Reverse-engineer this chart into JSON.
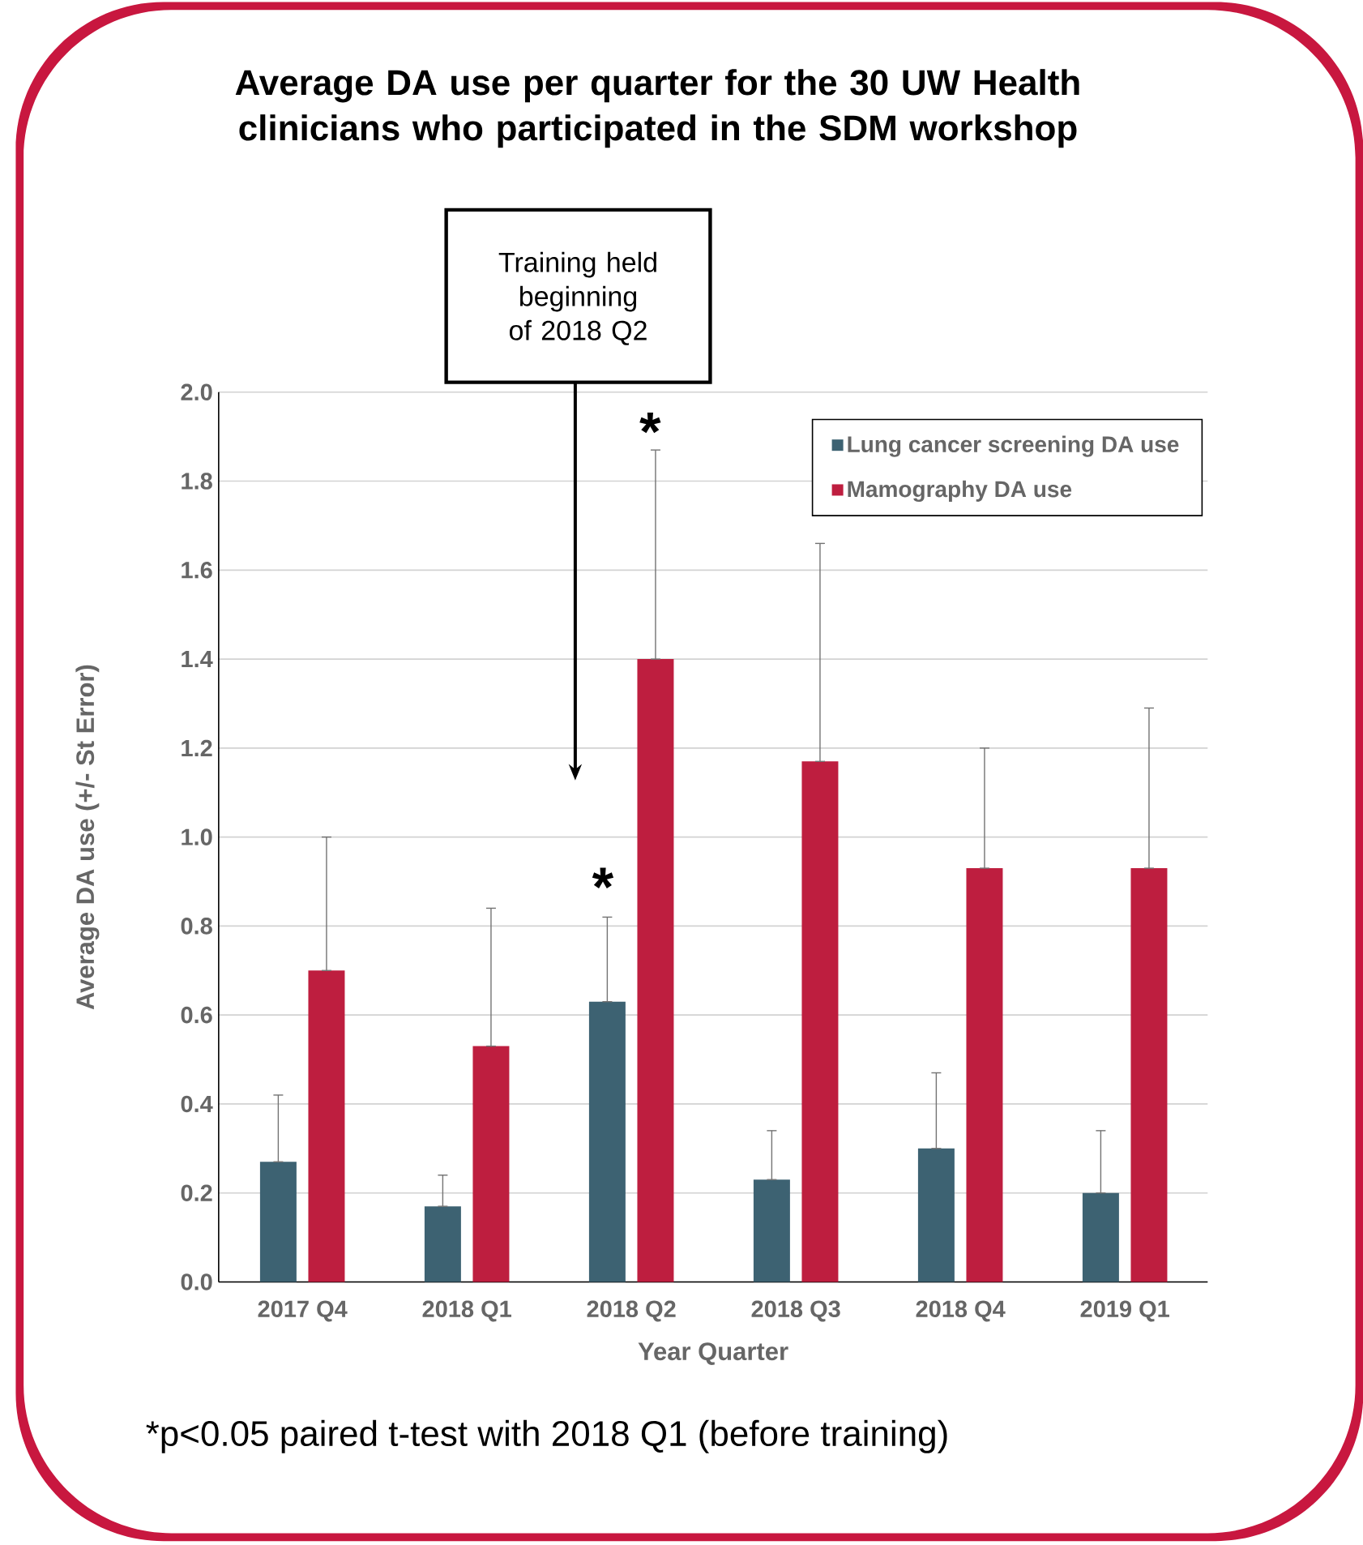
{
  "chart_data": {
    "type": "bar",
    "title": "Average DA use per quarter for the 30 UW Health clinicians who participated in the SDM workshop",
    "xlabel": "Year Quarter",
    "ylabel": "Average DA use (+/- St Error)",
    "categories": [
      "2017 Q4",
      "2018 Q1",
      "2018 Q2",
      "2018 Q3",
      "2018 Q4",
      "2019 Q1"
    ],
    "series": [
      {
        "name": "Lung cancer screening DA use",
        "color": "#3d6272",
        "values": [
          0.27,
          0.17,
          0.63,
          0.23,
          0.3,
          0.2
        ],
        "errors": [
          [
            0.27,
            0.42
          ],
          [
            0.17,
            0.24
          ],
          [
            0.63,
            0.82
          ],
          [
            0.23,
            0.34
          ],
          [
            0.3,
            0.47
          ],
          [
            0.2,
            0.34
          ]
        ]
      },
      {
        "name": "Mamography DA use",
        "color": "#be1e3f",
        "values": [
          0.7,
          0.53,
          1.4,
          1.17,
          0.93,
          0.93
        ],
        "errors": [
          [
            0.7,
            1.0
          ],
          [
            0.53,
            0.84
          ],
          [
            1.4,
            1.87
          ],
          [
            1.17,
            1.66
          ],
          [
            0.93,
            1.2
          ],
          [
            0.93,
            1.29
          ]
        ]
      }
    ],
    "ylim": [
      0,
      2
    ],
    "yticks": [
      {
        "value": 0,
        "label": "0.0"
      },
      {
        "value": 0.2,
        "label": "0.2"
      },
      {
        "value": 0.4,
        "label": "0.4"
      },
      {
        "value": 0.6,
        "label": "0.6"
      },
      {
        "value": 0.8,
        "label": "0.8"
      },
      {
        "value": 1,
        "label": "1.0"
      },
      {
        "value": 1.2,
        "label": "1.2"
      },
      {
        "value": 1.4,
        "label": "1.4"
      },
      {
        "value": 1.6,
        "label": "1.6"
      },
      {
        "value": 1.8,
        "label": "1.8"
      },
      {
        "value": 2,
        "label": "2.0"
      }
    ],
    "grid": "y",
    "legend": "top right",
    "annotations": [
      "Training held beginning of 2018 Q2",
      "*",
      "*",
      "*p<0.05 paired t-test with 2018 Q1 (before training)"
    ]
  }
}
